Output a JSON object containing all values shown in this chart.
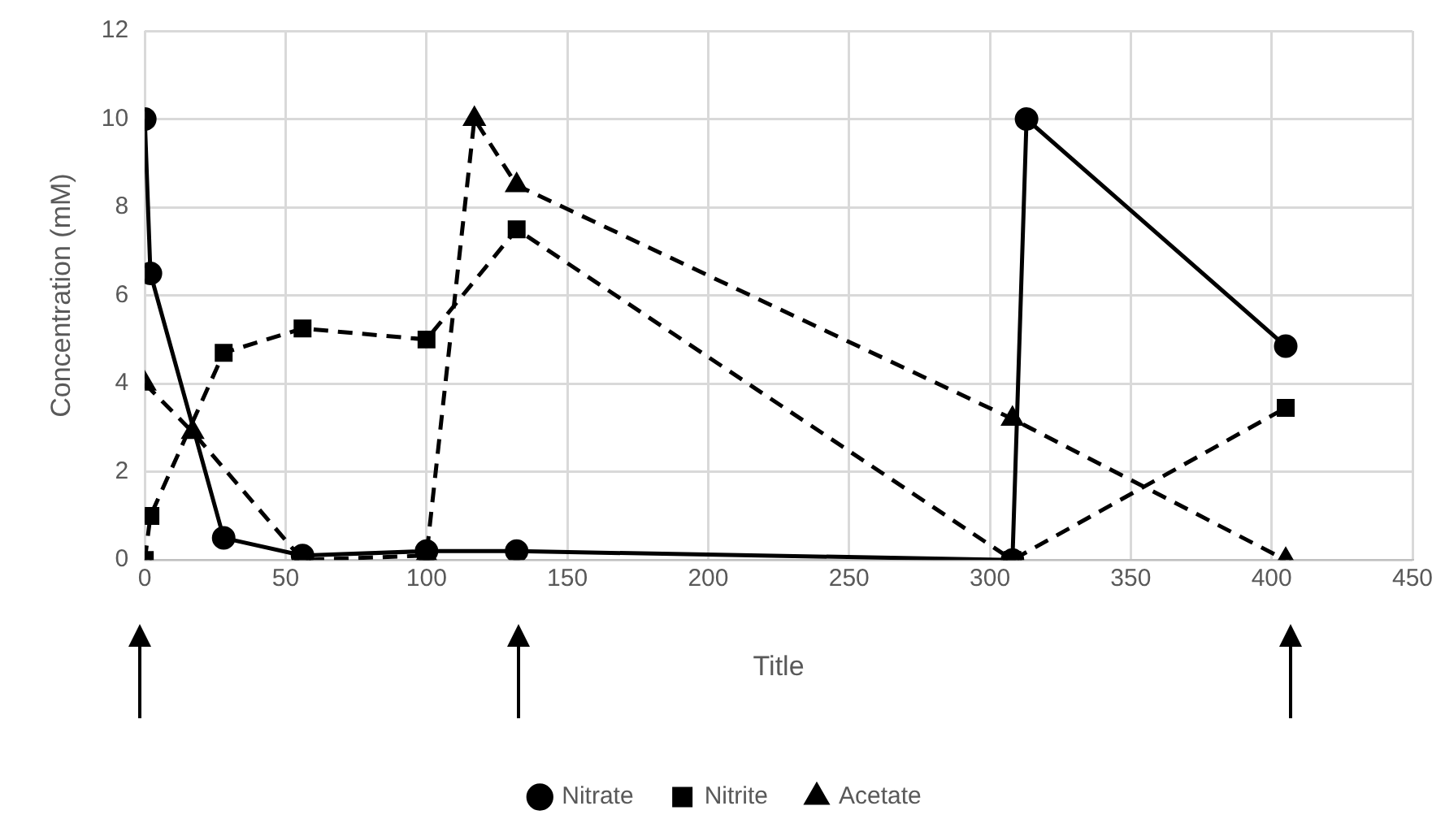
{
  "chart_data": {
    "type": "line",
    "xlabel": "Title",
    "ylabel": "Concentration (mM)",
    "xlim": [
      0,
      450
    ],
    "xticks": [
      0,
      50,
      100,
      150,
      200,
      250,
      300,
      350,
      400,
      450
    ],
    "ylim": [
      0,
      12
    ],
    "yticks": [
      0,
      2,
      4,
      6,
      8,
      10,
      12
    ],
    "grid": true,
    "legend": "bottom",
    "series": [
      {
        "name": "Nitrate",
        "color": "#000000",
        "marker": "circle",
        "line_style": "solid",
        "x": [
          0,
          2,
          28,
          56,
          100,
          132,
          308,
          313,
          405
        ],
        "values": [
          10,
          6.5,
          0.5,
          0.1,
          0.2,
          0.2,
          0,
          10,
          4.85
        ]
      },
      {
        "name": "Nitrite",
        "color": "#000000",
        "marker": "square",
        "line_style": "dashed",
        "x": [
          0,
          2,
          28,
          56,
          100,
          132,
          308,
          405
        ],
        "values": [
          0,
          1,
          4.7,
          5.25,
          5,
          7.5,
          0,
          3.45
        ]
      },
      {
        "name": "Acetate",
        "color": "#000000",
        "marker": "triangle",
        "line_style": "dashed",
        "x": [
          0,
          17,
          56,
          100,
          117,
          132,
          308,
          405
        ],
        "values": [
          4,
          2.9,
          0,
          0.1,
          10,
          8.5,
          3.2,
          0
        ]
      }
    ]
  }
}
